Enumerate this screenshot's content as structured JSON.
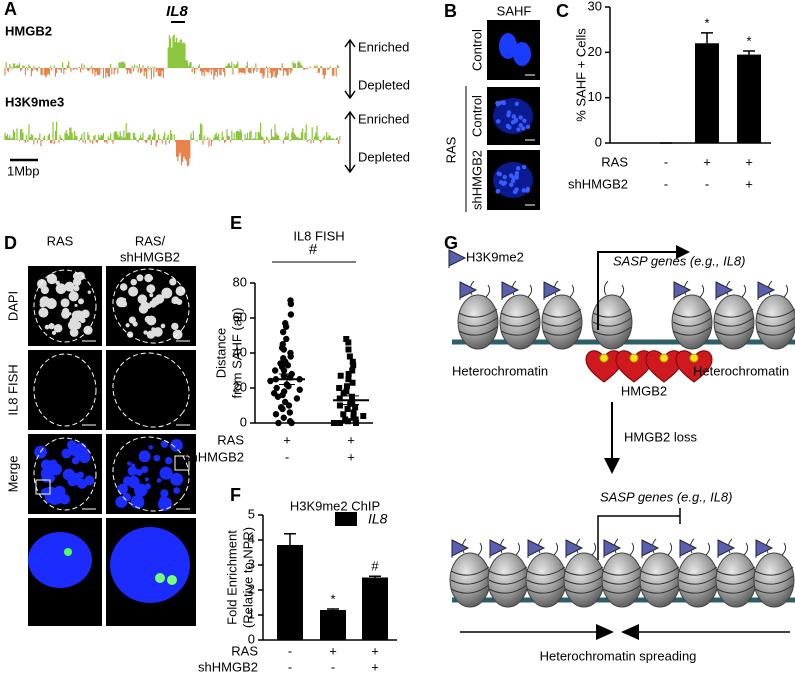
{
  "panel_labels": [
    "A",
    "B",
    "C",
    "D",
    "E",
    "F",
    "G"
  ],
  "panel_a": {
    "gene": "IL8",
    "tracks": [
      {
        "name": "HMGB2",
        "up": "Enriched",
        "down": "Depleted"
      },
      {
        "name": "H3K9me3",
        "up": "Enriched",
        "down": "Depleted"
      }
    ],
    "scale_bar": "1Mbp"
  },
  "panel_b": {
    "title": "SAHF",
    "rows": [
      "Control",
      "Control",
      "shHMGB2"
    ],
    "group": "RAS"
  },
  "panel_d": {
    "columns": [
      [
        "RAS"
      ],
      [
        "RAS/",
        "shHMGB2"
      ]
    ],
    "rows": [
      "DAPI",
      "IL8 FISH",
      "Merge"
    ]
  },
  "panel_g": {
    "mark_label": "H3K9me2",
    "gene_top": "SASP genes (e.g., IL8)",
    "left": "Heterochromatin",
    "right": "Heterochromatin",
    "protein": "HMGB2",
    "step": "HMGB2 loss",
    "gene_bottom": "SASP genes (e.g., IL8)",
    "bottom": "Heterochromatin spreading"
  },
  "chart_data": [
    {
      "type": "bar",
      "ylabel": "% SAHF + Cells",
      "condition_rows": [
        {
          "name": "RAS",
          "labels": [
            "-",
            "+",
            "+"
          ]
        },
        {
          "name": "shHMGB2",
          "labels": [
            "-",
            "-",
            "+"
          ]
        }
      ],
      "values": [
        0,
        22,
        19.5
      ],
      "errors": [
        0,
        2.3,
        0.8
      ],
      "value_annotations": [
        null,
        "*",
        "*"
      ],
      "color": "#000000",
      "ylim": [
        0,
        30
      ],
      "yticks": [
        0,
        10,
        20,
        30
      ]
    },
    {
      "type": "dotplot",
      "title": "IL8 FISH",
      "ylabel": [
        "Distance",
        "from SAHF (au)"
      ],
      "annotation": "#",
      "condition_rows": [
        {
          "name": "RAS",
          "labels": [
            "+",
            "+"
          ]
        },
        {
          "name": "shHMGB2",
          "labels": [
            "-",
            "+"
          ]
        }
      ],
      "series": [
        {
          "marker": "circle",
          "color": "#000000",
          "values": [
            70,
            68,
            62,
            57,
            55,
            52,
            48,
            45,
            43,
            42,
            40,
            38,
            37,
            35,
            34,
            33,
            32,
            30,
            30,
            28,
            27,
            26,
            25,
            25,
            24,
            22,
            21,
            20,
            19,
            18,
            17,
            16,
            15,
            14,
            12,
            10,
            9,
            8,
            6,
            5,
            3,
            1,
            0,
            0
          ]
        },
        {
          "marker": "square",
          "color": "#000000",
          "values": [
            48,
            46,
            42,
            38,
            35,
            33,
            30,
            28,
            27,
            25,
            23,
            21,
            20,
            18,
            17,
            15,
            14,
            12,
            11,
            10,
            9,
            8,
            6,
            5,
            4,
            3,
            2,
            2,
            1,
            0,
            0,
            0
          ]
        }
      ],
      "means": [
        25,
        13
      ],
      "sems": [
        3,
        2.5
      ],
      "ylim": [
        0,
        80
      ],
      "yticks": [
        0,
        20,
        40,
        60,
        80
      ]
    },
    {
      "type": "bar",
      "title": "H3K9me2 ChIP",
      "ylabel": [
        "Fold Enrichment",
        "(Relative to NPR)"
      ],
      "condition_rows": [
        {
          "name": "RAS",
          "labels": [
            "-",
            "+",
            "+"
          ]
        },
        {
          "name": "shHMGB2",
          "labels": [
            "-",
            "-",
            "+"
          ]
        }
      ],
      "series": [
        {
          "name": "IL8",
          "color": "#000000",
          "values": [
            3.8,
            1.2,
            2.5
          ],
          "errors": [
            0.45,
            0.04,
            0.05
          ]
        }
      ],
      "value_annotations": [
        null,
        "*",
        "#"
      ],
      "ylim": [
        0,
        5
      ],
      "yticks": [
        0,
        1,
        2,
        3,
        4,
        5
      ]
    }
  ]
}
